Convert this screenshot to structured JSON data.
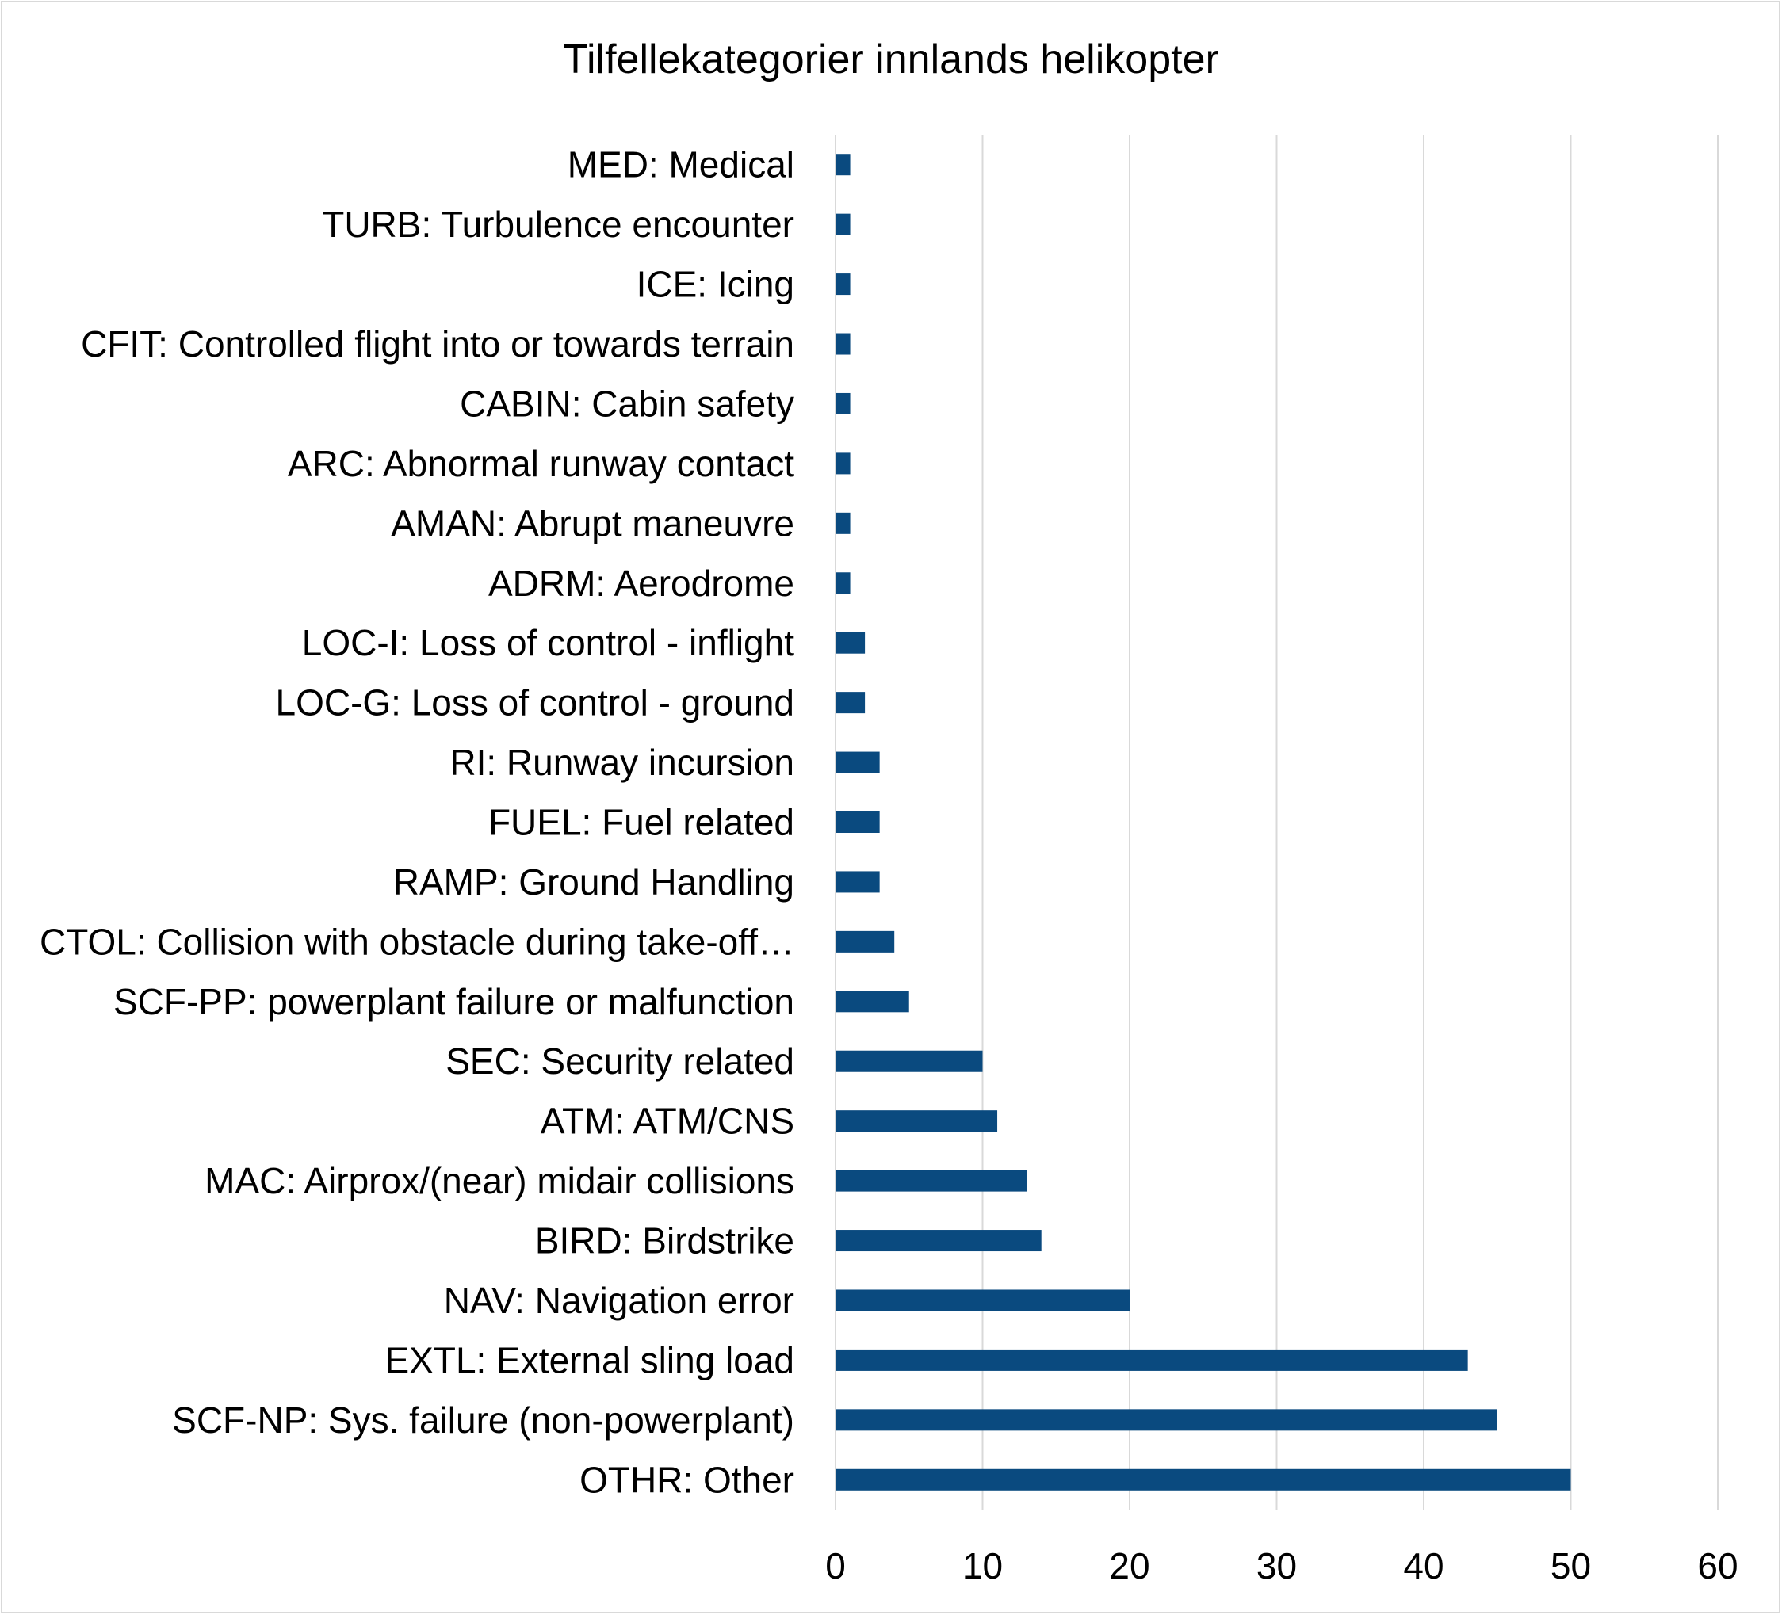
{
  "chart_data": {
    "type": "bar",
    "orientation": "horizontal",
    "title": "Tilfellekategorier innlands helikopter",
    "xlabel": "",
    "ylabel": "",
    "xlim": [
      0,
      60
    ],
    "xticks": [
      0,
      10,
      20,
      30,
      40,
      50,
      60
    ],
    "grid": true,
    "legend": "none",
    "bar_color": "#0a4a7f",
    "categories": [
      "MED: Medical",
      "TURB: Turbulence encounter",
      "ICE: Icing",
      "CFIT: Controlled flight into or towards terrain",
      "CABIN: Cabin safety",
      "ARC: Abnormal runway contact",
      "AMAN: Abrupt maneuvre",
      "ADRM: Aerodrome",
      "LOC-I: Loss of control - inflight",
      "LOC-G: Loss of control - ground",
      "RI: Runway incursion",
      "FUEL: Fuel related",
      "RAMP: Ground Handling",
      "CTOL: Collision with obstacle during take-off…",
      "SCF-PP: powerplant failure or malfunction",
      "SEC: Security related",
      "ATM: ATM/CNS",
      "MAC: Airprox/(near) midair collisions",
      "BIRD: Birdstrike",
      "NAV: Navigation error",
      "EXTL: External sling load",
      "SCF-NP: Sys. failure (non-powerplant)",
      "OTHR: Other"
    ],
    "values": [
      1,
      1,
      1,
      1,
      1,
      1,
      1,
      1,
      2,
      2,
      3,
      3,
      3,
      4,
      5,
      10,
      11,
      13,
      14,
      20,
      43,
      45,
      50
    ]
  }
}
